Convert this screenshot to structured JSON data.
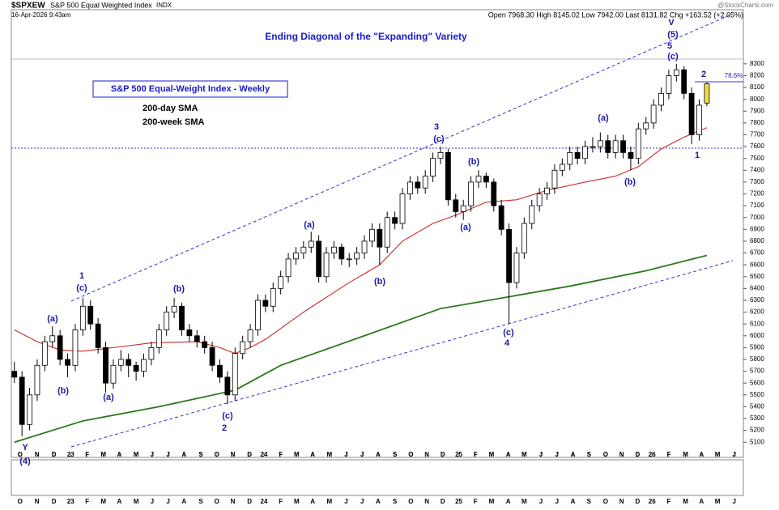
{
  "chart_data": {
    "type": "candlestick",
    "header": {
      "symbol": "$SPXEW",
      "name": "S&P 500 Equal Weighted Index",
      "exchange": "INDX",
      "date": "16-Apr-2026 9:43am",
      "quote": "Open 7968.30 High 8145.02 Low 7942.00 Last 8131.82 Chg +163.52 (+2.05%)",
      "source": "@StockCharts.com"
    },
    "title": "Ending Diagonal of the \"Expanding\" Variety",
    "legend_title": "S&P 500 Equal-Weight Index - Weekly",
    "color": "#000000",
    "up_fill": "#ffffff",
    "last_fill": "#f2dc4a",
    "open": [
      5700,
      5650,
      5250,
      5500,
      5750,
      5950,
      6000,
      5800,
      5750,
      6050,
      6250,
      6100,
      5900,
      5600,
      5750,
      5800,
      5750,
      5700,
      5800,
      5900,
      6050,
      6200,
      6250,
      6050,
      6000,
      5950,
      5900,
      5750,
      5650,
      5500,
      5850,
      5950,
      6050,
      6300,
      6250,
      6400,
      6500,
      6650,
      6700,
      6750,
      6800,
      6500,
      6700,
      6750,
      6650,
      6650,
      6700,
      6800,
      6900,
      6750,
      7000,
      6950,
      7200,
      7300,
      7250,
      7350,
      7500,
      7550,
      7150,
      7050,
      7100,
      7300,
      7350,
      7300,
      7100,
      6900,
      6450,
      6700,
      6950,
      7100,
      7200,
      7250,
      7400,
      7450,
      7550,
      7500,
      7600,
      7600,
      7650,
      7550,
      7650,
      7550,
      7500,
      7750,
      7800,
      7950,
      8050,
      8200,
      8250,
      8050,
      7700,
      7968.3
    ],
    "high": [
      5780,
      5700,
      5560,
      5800,
      6000,
      6080,
      6050,
      5850,
      6100,
      6320,
      6300,
      6150,
      5950,
      5800,
      5880,
      5850,
      5780,
      5850,
      5950,
      6100,
      6250,
      6320,
      6280,
      6100,
      6050,
      6000,
      5950,
      5800,
      5700,
      5900,
      6000,
      6100,
      6350,
      6350,
      6450,
      6550,
      6700,
      6750,
      6800,
      6880,
      6850,
      6750,
      6800,
      6780,
      6700,
      6750,
      6850,
      6950,
      6950,
      7050,
      7050,
      7250,
      7350,
      7350,
      7400,
      7550,
      7600,
      7580,
      7200,
      7150,
      7350,
      7400,
      7380,
      7330,
      7150,
      6950,
      6750,
      7000,
      7150,
      7250,
      7300,
      7450,
      7500,
      7600,
      7600,
      7650,
      7680,
      7720,
      7700,
      7700,
      7700,
      7600,
      7800,
      7850,
      8000,
      8100,
      8250,
      8300,
      8280,
      8100,
      8000,
      8145.02
    ],
    "low": [
      5600,
      5150,
      5200,
      5450,
      5700,
      5900,
      5750,
      5650,
      5700,
      6000,
      6050,
      5850,
      5520,
      5550,
      5700,
      5650,
      5620,
      5650,
      5750,
      5850,
      6000,
      6150,
      6000,
      5950,
      5900,
      5850,
      5700,
      5600,
      5420,
      5450,
      5800,
      5900,
      6000,
      6200,
      6200,
      6350,
      6450,
      6600,
      6650,
      6700,
      6450,
      6450,
      6650,
      6600,
      6580,
      6600,
      6650,
      6750,
      6600,
      6700,
      6900,
      6900,
      7150,
      7200,
      7200,
      7300,
      7450,
      7100,
      7000,
      6980,
      7050,
      7250,
      7250,
      7050,
      6850,
      6100,
      6400,
      6650,
      6900,
      7050,
      7150,
      7200,
      7350,
      7400,
      7450,
      7450,
      7550,
      7550,
      7500,
      7500,
      7500,
      7400,
      7450,
      7700,
      7750,
      7900,
      8000,
      8150,
      8000,
      7620,
      7650,
      7942
    ],
    "close": [
      5650,
      5250,
      5500,
      5750,
      5950,
      6000,
      5800,
      5750,
      6050,
      6250,
      6100,
      5900,
      5600,
      5750,
      5800,
      5750,
      5700,
      5800,
      5900,
      6050,
      6200,
      6250,
      6050,
      6000,
      5950,
      5900,
      5750,
      5650,
      5500,
      5850,
      5950,
      6050,
      6300,
      6250,
      6400,
      6500,
      6650,
      6700,
      6750,
      6800,
      6500,
      6700,
      6750,
      6650,
      6650,
      6700,
      6800,
      6900,
      6750,
      7000,
      6950,
      7200,
      7300,
      7250,
      7350,
      7500,
      7550,
      7150,
      7050,
      7100,
      7300,
      7350,
      7300,
      7100,
      6900,
      6450,
      6700,
      6950,
      7100,
      7200,
      7250,
      7400,
      7450,
      7550,
      7500,
      7600,
      7600,
      7650,
      7550,
      7650,
      7550,
      7500,
      7750,
      7800,
      7950,
      8050,
      8200,
      8250,
      8050,
      7700,
      7950,
      8131.82
    ],
    "overlays": [
      {
        "name": "200-day SMA",
        "color": "#cc2929",
        "x": [
          0,
          3,
          6,
          9,
          13,
          18,
          24,
          27,
          29,
          31,
          33,
          38,
          44,
          48,
          51,
          55,
          58,
          62,
          66,
          70,
          75,
          79,
          82,
          85,
          88,
          91
        ],
        "values": [
          6050,
          5950,
          5880,
          5870,
          5900,
          5940,
          5950,
          5900,
          5850,
          5900,
          5970,
          6200,
          6450,
          6600,
          6800,
          6950,
          7020,
          7130,
          7150,
          7230,
          7300,
          7350,
          7430,
          7580,
          7680,
          7760
        ]
      },
      {
        "name": "200-week SMA",
        "color": "#2a7a1c",
        "x": [
          0,
          9,
          19,
          29,
          35,
          46,
          56,
          65,
          73,
          83,
          91
        ],
        "values": [
          5100,
          5280,
          5400,
          5540,
          5750,
          6000,
          6230,
          6330,
          6420,
          6550,
          6680
        ]
      }
    ],
    "ylim": [
      5040,
      8340
    ],
    "yticks": [
      5100,
      5200,
      5300,
      5400,
      5500,
      5600,
      5700,
      5800,
      5900,
      6000,
      6100,
      6200,
      6300,
      6400,
      6500,
      6600,
      6700,
      6800,
      6900,
      7000,
      7100,
      7200,
      7300,
      7400,
      7500,
      7600,
      7700,
      7800,
      7900,
      8000,
      8100,
      8200,
      8300
    ],
    "xlim": [
      -0.4,
      95.8
    ],
    "xticks": [
      {
        "value": 0.74,
        "label": "O"
      },
      {
        "value": 2.97,
        "label": "N"
      },
      {
        "value": 5.2,
        "label": "D"
      },
      {
        "value": 7.4,
        "label": "23"
      },
      {
        "value": 9.57,
        "label": "F"
      },
      {
        "value": 11.7,
        "label": "M"
      },
      {
        "value": 13.8,
        "label": "A"
      },
      {
        "value": 16,
        "label": "M"
      },
      {
        "value": 18.1,
        "label": "J"
      },
      {
        "value": 20.2,
        "label": "J"
      },
      {
        "value": 22.3,
        "label": "A"
      },
      {
        "value": 24.5,
        "label": "S"
      },
      {
        "value": 26.6,
        "label": "O"
      },
      {
        "value": 28.7,
        "label": "N"
      },
      {
        "value": 30.9,
        "label": "D"
      },
      {
        "value": 32.8,
        "label": "24"
      },
      {
        "value": 35,
        "label": "F"
      },
      {
        "value": 37.1,
        "label": "M"
      },
      {
        "value": 39.2,
        "label": "A"
      },
      {
        "value": 41.4,
        "label": "M"
      },
      {
        "value": 43.6,
        "label": "J"
      },
      {
        "value": 45.7,
        "label": "J"
      },
      {
        "value": 47.8,
        "label": "A"
      },
      {
        "value": 50,
        "label": "S"
      },
      {
        "value": 52.1,
        "label": "O"
      },
      {
        "value": 54.2,
        "label": "N"
      },
      {
        "value": 56.3,
        "label": "D"
      },
      {
        "value": 58.4,
        "label": "25"
      },
      {
        "value": 60.6,
        "label": "F"
      },
      {
        "value": 62.7,
        "label": "M"
      },
      {
        "value": 64.9,
        "label": "A"
      },
      {
        "value": 67,
        "label": "M"
      },
      {
        "value": 69.2,
        "label": "J"
      },
      {
        "value": 71.3,
        "label": "J"
      },
      {
        "value": 73.4,
        "label": "A"
      },
      {
        "value": 75.5,
        "label": "S"
      },
      {
        "value": 77.7,
        "label": "O"
      },
      {
        "value": 79.8,
        "label": "N"
      },
      {
        "value": 81.9,
        "label": "D"
      },
      {
        "value": 83.8,
        "label": "26"
      },
      {
        "value": 86,
        "label": "F"
      },
      {
        "value": 88.2,
        "label": "M"
      },
      {
        "value": 90.3,
        "label": "A"
      },
      {
        "value": 92.4,
        "label": "M"
      },
      {
        "value": 94.6,
        "label": "J"
      }
    ],
    "grid": false,
    "annotations": [
      "Y",
      "(4)",
      "(a)",
      "(b)",
      "1",
      "(c)",
      "(a)",
      "(b)",
      "(c)",
      "2",
      "(a)",
      "(b)",
      "3",
      "(c)",
      "(a)",
      "(b)",
      "(c)",
      "4",
      "(a)",
      "(b)",
      "V",
      "(5)",
      "5",
      "(c)",
      "2",
      "1",
      "78.6%"
    ]
  }
}
